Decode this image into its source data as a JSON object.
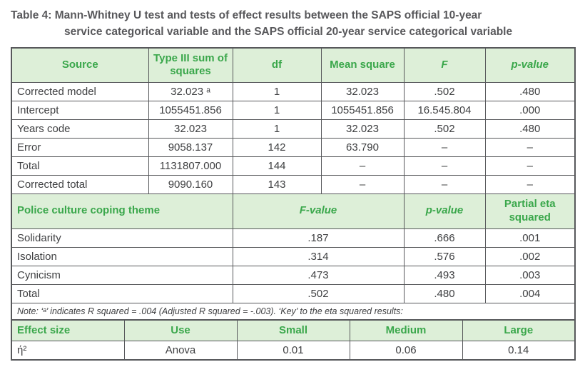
{
  "title": {
    "label": "Table 4:",
    "line1": "Mann-Whitney U test and tests of effect results between the SAPS official 10-year",
    "line2": "service categorical variable and the SAPS official 20-year service categorical variable"
  },
  "anova_table": {
    "headers": [
      "Source",
      "Type III sum of squares",
      "df",
      "Mean square",
      "F",
      "p-value"
    ],
    "rows": [
      [
        "Corrected model",
        "32.023 ᵃ",
        "1",
        "32.023",
        ".502",
        ".480"
      ],
      [
        "Intercept",
        "1055451.856",
        "1",
        "1055451.856",
        "16.545.804",
        ".000"
      ],
      [
        "Years code",
        "32.023",
        "1",
        "32.023",
        ".502",
        ".480"
      ],
      [
        "Error",
        "9058.137",
        "142",
        "63.790",
        "–",
        "–"
      ],
      [
        "Total",
        "1131807.000",
        "144",
        "–",
        "–",
        "–"
      ],
      [
        "Corrected total",
        "9090.160",
        "143",
        "–",
        "–",
        "–"
      ]
    ]
  },
  "coping_table": {
    "headers": [
      "Police culture coping theme",
      "F-value",
      "p-value",
      "Partial eta squared"
    ],
    "rows": [
      [
        "Solidarity",
        ".187",
        ".666",
        ".001"
      ],
      [
        "Isolation",
        ".314",
        ".576",
        ".002"
      ],
      [
        "Cynicism",
        ".473",
        ".493",
        ".003"
      ],
      [
        "Total",
        ".502",
        ".480",
        ".004"
      ]
    ]
  },
  "note": "Note: ‘ᵃ’ indicates R squared = .004 (Adjusted R squared = -.003). ‘Key’ to the eta squared results:",
  "effect_table": {
    "headers": [
      "Effect size",
      "Use",
      "Small",
      "Medium",
      "Large"
    ],
    "rows": [
      [
        "ή²",
        "Anova",
        "0.01",
        "0.06",
        "0.14"
      ]
    ]
  },
  "colors": {
    "header_green_text": "#3aa74b",
    "header_green_bg": "#ddefd8",
    "border": "#57585b",
    "title_text": "#58585b",
    "body_text": "#3f4042"
  }
}
